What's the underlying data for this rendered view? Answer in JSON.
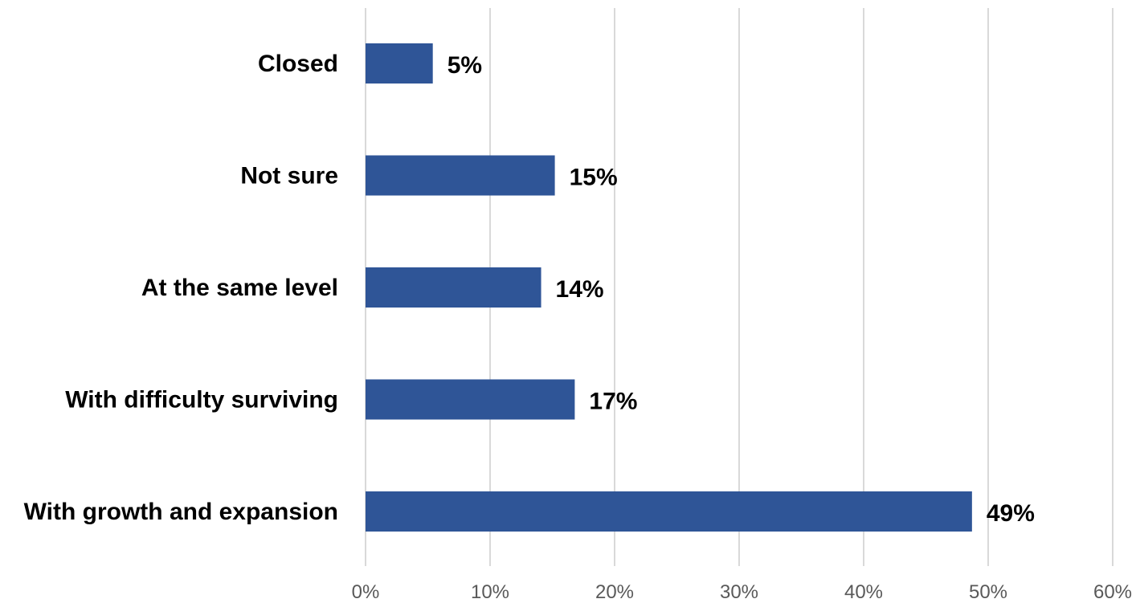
{
  "chart_data": {
    "type": "bar",
    "orientation": "horizontal",
    "categories": [
      "Closed",
      "Not sure",
      "At the same level",
      "With difficulty surviving",
      "With growth and expansion"
    ],
    "values": [
      5.4,
      15.2,
      14.1,
      16.8,
      48.7
    ],
    "data_labels": [
      "5%",
      "15%",
      "14%",
      "17%",
      "49%"
    ],
    "x_ticks": [
      "0%",
      "10%",
      "20%",
      "30%",
      "40%",
      "50%",
      "60%"
    ],
    "xlim": [
      0,
      60
    ],
    "grid": true,
    "legend": "none",
    "title": "",
    "xlabel": "",
    "ylabel": "",
    "bar_color": "#2f5597"
  }
}
